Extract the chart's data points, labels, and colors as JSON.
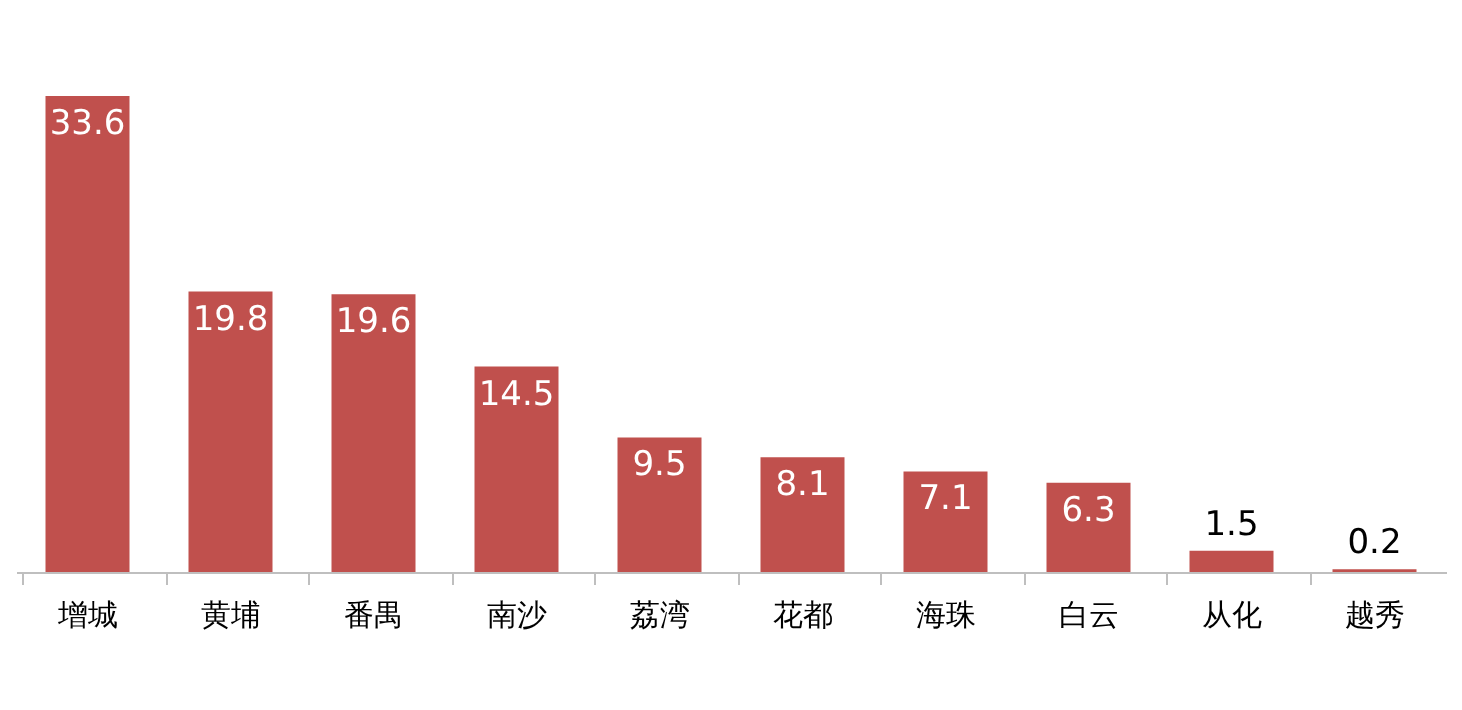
{
  "chart_data": {
    "type": "bar",
    "categories": [
      "增城",
      "黄埔",
      "番禺",
      "南沙",
      "荔湾",
      "花都",
      "海珠",
      "白云",
      "从化",
      "越秀"
    ],
    "values": [
      33.6,
      19.8,
      19.6,
      14.5,
      9.5,
      8.1,
      7.1,
      6.3,
      1.5,
      0.2
    ],
    "color": "#c0504d",
    "data_labels": true
  }
}
